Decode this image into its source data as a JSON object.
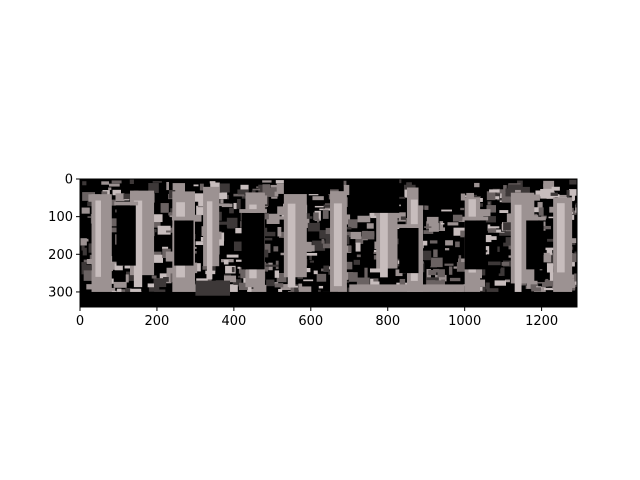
{
  "chart_data": {
    "type": "heatmap",
    "title": "",
    "xlabel": "",
    "ylabel": "",
    "image_width": 1292,
    "image_height": 340,
    "xlim": [
      0,
      1292
    ],
    "ylim": [
      340,
      0
    ],
    "xticks": [
      0,
      200,
      400,
      600,
      800,
      1000,
      1200
    ],
    "yticks": [
      0,
      100,
      200,
      300
    ],
    "xtick_labels": [
      "0",
      "200",
      "400",
      "600",
      "800",
      "1000",
      "1200"
    ],
    "ytick_labels": [
      "0",
      "100",
      "200",
      "300"
    ],
    "grid": false,
    "legend": "none",
    "colormap": [
      "#000000",
      "#3d3838",
      "#6a6262",
      "#9c9292",
      "#c7bdbd"
    ],
    "frame_color": "#000000"
  }
}
